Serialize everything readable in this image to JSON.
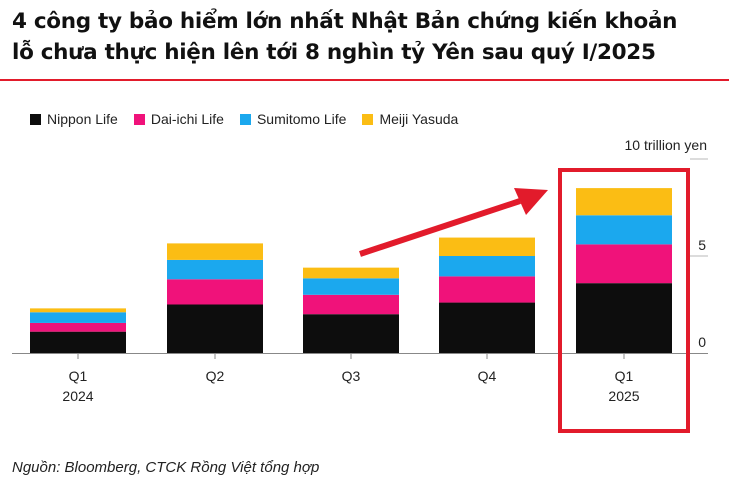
{
  "headline": {
    "line1": "4 công ty bảo hiểm lớn nhất Nhật Bản chứng kiến khoản",
    "line2": "lỗ chưa thực hiện lên tới 8 nghìn tỷ Yên sau quý I/2025"
  },
  "source": "Nguồn: Bloomberg, CTCK Rồng Việt tổng hợp",
  "colors": {
    "accent_red": "#e21b2b",
    "nippon": "#0d0d0d",
    "daiichi": "#f0127a",
    "sumitomo": "#1ba8ee",
    "meiji": "#fbbd14",
    "axis": "#888888"
  },
  "chart_data": {
    "type": "bar",
    "stacked": true,
    "categories": [
      [
        "Q1",
        "2024"
      ],
      [
        "Q2",
        ""
      ],
      [
        "Q3",
        ""
      ],
      [
        "Q4",
        ""
      ],
      [
        "Q1",
        "2025"
      ]
    ],
    "series": [
      {
        "name": "Nippon Life",
        "values": [
          1.1,
          2.5,
          2.0,
          2.6,
          3.6
        ]
      },
      {
        "name": "Dai-ichi Life",
        "values": [
          0.45,
          1.3,
          1.0,
          1.35,
          2.0
        ]
      },
      {
        "name": "Sumitomo Life",
        "values": [
          0.55,
          1.0,
          0.85,
          1.05,
          1.5
        ]
      },
      {
        "name": "Meiji Yasuda",
        "values": [
          0.2,
          0.85,
          0.55,
          0.95,
          1.4
        ]
      }
    ],
    "unit_label": "10 trillion yen",
    "yticks": [
      0,
      5
    ],
    "ylim": [
      0,
      10
    ],
    "y_axis_side": "right",
    "grid": true,
    "legend_position": "top-left",
    "highlight_category_index": 4
  }
}
